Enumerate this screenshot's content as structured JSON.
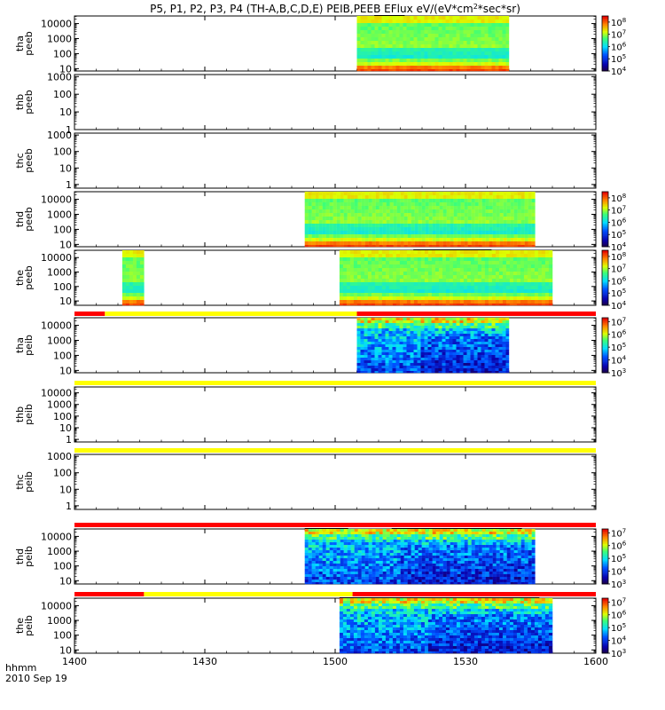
{
  "chart_data": {
    "type": "heatmap",
    "title": "P5, P1, P2, P3, P4 (TH-A,B,C,D,E) PEIB,PEEB EFlux eV/(eV*cm²*sec*sr)",
    "x_axis": {
      "label": "hhmm",
      "date": "2010 Sep 19",
      "range": [
        "14:00",
        "16:00"
      ],
      "ticks": [
        "1400",
        "1430",
        "1500",
        "1530",
        "1600"
      ]
    },
    "panels": [
      {
        "probe": "tha",
        "product": "peeb",
        "ylabel": [
          "tha",
          "peeb"
        ],
        "y_scale": "log",
        "ytick_labels": [
          "10000",
          "1000",
          "100",
          "10"
        ],
        "ytick_values": [
          10000,
          1000,
          100,
          10
        ],
        "ylim": [
          7,
          32000
        ],
        "colorbar": {
          "labels": [
            "10^8",
            "10^7",
            "10^6",
            "10^5",
            "10^4"
          ],
          "label_exponents": [
            8,
            7,
            6,
            5,
            4
          ],
          "range_exp": [
            4,
            8.5
          ]
        },
        "blocks": [
          {
            "start": "15:05",
            "end": "15:40",
            "kind": "electron"
          }
        ],
        "mode_bar": null,
        "status_marks": [
          {
            "start": "15:09",
            "end": "15:16"
          }
        ]
      },
      {
        "probe": "thb",
        "product": "peeb",
        "ylabel": [
          "thb",
          "peeb"
        ],
        "y_scale": "log",
        "ytick_labels": [
          "1000",
          "100",
          "10",
          "1"
        ],
        "ytick_values": [
          1000,
          100,
          10,
          1
        ],
        "ylim": [
          1,
          1300
        ],
        "colorbar": null,
        "blocks": [],
        "mode_bar": null,
        "status_marks": []
      },
      {
        "probe": "thc",
        "product": "peeb",
        "ylabel": [
          "thc",
          "peeb"
        ],
        "y_scale": "log",
        "ytick_labels": [
          "1000",
          "100",
          "10",
          "1"
        ],
        "ytick_values": [
          1000,
          100,
          10,
          1
        ],
        "ylim": [
          0.6,
          1300
        ],
        "colorbar": null,
        "blocks": [],
        "mode_bar": null,
        "status_marks": []
      },
      {
        "probe": "thd",
        "product": "peeb",
        "ylabel": [
          "thd",
          "peeb"
        ],
        "y_scale": "log",
        "ytick_labels": [
          "10000",
          "1000",
          "100",
          "10"
        ],
        "ytick_values": [
          10000,
          1000,
          100,
          10
        ],
        "ylim": [
          7,
          32000
        ],
        "colorbar": {
          "labels": [
            "10^8",
            "10^7",
            "10^6",
            "10^5",
            "10^4"
          ],
          "label_exponents": [
            8,
            7,
            6,
            5,
            4
          ],
          "range_exp": [
            4,
            8.5
          ]
        },
        "blocks": [
          {
            "start": "14:53",
            "end": "15:46",
            "kind": "electron"
          }
        ],
        "mode_bar": null,
        "status_marks": []
      },
      {
        "probe": "the",
        "product": "peeb",
        "ylabel": [
          "the",
          "peeb"
        ],
        "y_scale": "log",
        "ytick_labels": [
          "10000",
          "1000",
          "100",
          "10"
        ],
        "ytick_values": [
          10000,
          1000,
          100,
          10
        ],
        "ylim": [
          5,
          32000
        ],
        "colorbar": {
          "labels": [
            "10^8",
            "10^7",
            "10^6",
            "10^5",
            "10^4"
          ],
          "label_exponents": [
            8,
            7,
            6,
            5,
            4
          ],
          "range_exp": [
            4,
            8.5
          ]
        },
        "blocks": [
          {
            "start": "14:11",
            "end": "14:16",
            "kind": "electron"
          },
          {
            "start": "15:01",
            "end": "15:50",
            "kind": "electron"
          }
        ],
        "mode_bar": null,
        "status_marks": [
          {
            "start": "15:18",
            "end": "15:36"
          }
        ]
      },
      {
        "probe": "tha",
        "product": "peib",
        "ylabel": [
          "tha",
          "peib"
        ],
        "y_scale": "log",
        "ytick_labels": [
          "10000",
          "1000",
          "100",
          "10"
        ],
        "ytick_values": [
          10000,
          1000,
          100,
          10
        ],
        "ylim": [
          7,
          32000
        ],
        "colorbar": {
          "labels": [
            "10^7",
            "10^6",
            "10^5",
            "10^4",
            "10^3"
          ],
          "label_exponents": [
            7,
            6,
            5,
            4,
            3
          ],
          "range_exp": [
            3,
            7.3
          ]
        },
        "blocks": [
          {
            "start": "15:05",
            "end": "15:40",
            "kind": "ion"
          }
        ],
        "mode_bar": [
          {
            "start": "14:00",
            "end": "14:07",
            "color": "red"
          },
          {
            "start": "14:07",
            "end": "15:05",
            "color": "yellow"
          },
          {
            "start": "15:05",
            "end": "16:00",
            "color": "red"
          }
        ],
        "status_marks": []
      },
      {
        "probe": "thb",
        "product": "peib",
        "ylabel": [
          "thb",
          "peib"
        ],
        "y_scale": "log",
        "ytick_labels": [
          "10000",
          "1000",
          "100",
          "10",
          "1"
        ],
        "ytick_values": [
          10000,
          1000,
          100,
          10,
          1
        ],
        "ylim": [
          0.6,
          32000
        ],
        "colorbar": null,
        "blocks": [],
        "mode_bar": [
          {
            "start": "14:00",
            "end": "16:00",
            "color": "yellow"
          }
        ],
        "status_marks": []
      },
      {
        "probe": "thc",
        "product": "peib",
        "ylabel": [
          "thc",
          "peib"
        ],
        "y_scale": "log",
        "ytick_labels": [
          "1000",
          "100",
          "10",
          "1"
        ],
        "ytick_values": [
          1000,
          100,
          10,
          1
        ],
        "ylim": [
          0.6,
          1300
        ],
        "colorbar": null,
        "blocks": [],
        "mode_bar": [
          {
            "start": "14:00",
            "end": "16:00",
            "color": "yellow"
          }
        ],
        "status_marks": []
      },
      {
        "probe": "thd",
        "product": "peib",
        "ylabel": [
          "thd",
          "peib"
        ],
        "y_scale": "log",
        "ytick_labels": [
          "10000",
          "1000",
          "100",
          "10"
        ],
        "ytick_values": [
          10000,
          1000,
          100,
          10
        ],
        "ylim": [
          6,
          32000
        ],
        "colorbar": {
          "labels": [
            "10^7",
            "10^6",
            "10^5",
            "10^4",
            "10^3"
          ],
          "label_exponents": [
            7,
            6,
            5,
            4,
            3
          ],
          "range_exp": [
            3,
            7.3
          ]
        },
        "blocks": [
          {
            "start": "14:53",
            "end": "15:46",
            "kind": "ion"
          }
        ],
        "mode_bar": [
          {
            "start": "14:00",
            "end": "16:00",
            "color": "red"
          }
        ],
        "status_marks": [
          {
            "start": "14:53",
            "end": "15:03"
          },
          {
            "start": "15:13",
            "end": "15:43"
          }
        ]
      },
      {
        "probe": "the",
        "product": "peib",
        "ylabel": [
          "the",
          "peib"
        ],
        "y_scale": "log",
        "ytick_labels": [
          "10000",
          "1000",
          "100",
          "10"
        ],
        "ytick_values": [
          10000,
          1000,
          100,
          10
        ],
        "ylim": [
          6,
          32000
        ],
        "colorbar": {
          "labels": [
            "10^7",
            "10^6",
            "10^5",
            "10^4",
            "10^3"
          ],
          "label_exponents": [
            7,
            6,
            5,
            4,
            3
          ],
          "range_exp": [
            3,
            7.3
          ]
        },
        "blocks": [
          {
            "start": "15:01",
            "end": "15:50",
            "kind": "ion"
          }
        ],
        "mode_bar": [
          {
            "start": "14:00",
            "end": "14:16",
            "color": "red"
          },
          {
            "start": "14:16",
            "end": "15:04",
            "color": "yellow"
          },
          {
            "start": "15:04",
            "end": "16:00",
            "color": "red"
          }
        ],
        "status_marks": [
          {
            "start": "15:01",
            "end": "15:47"
          }
        ]
      }
    ]
  }
}
